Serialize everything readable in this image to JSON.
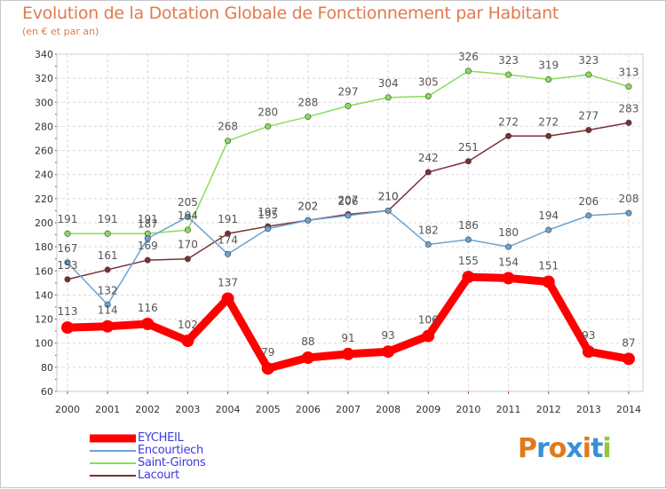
{
  "chart_data": {
    "type": "line",
    "title": "Evolution de la Dotation Globale de Fonctionnement par Habitant",
    "subtitle": "(en € et par an)",
    "xlabel": "",
    "ylabel": "",
    "categories": [
      "2000",
      "2001",
      "2002",
      "2003",
      "2004",
      "2005",
      "2006",
      "2007",
      "2008",
      "2009",
      "2010",
      "2011",
      "2012",
      "2013",
      "2014"
    ],
    "ylim": [
      60,
      340
    ],
    "yticks": [
      60,
      80,
      100,
      120,
      140,
      160,
      180,
      200,
      220,
      240,
      260,
      280,
      300,
      320,
      340
    ],
    "grid": true,
    "legend_position": "bottom-left",
    "series": [
      {
        "name": "EYCHEIL",
        "color": "#ff0000",
        "emphasis": true,
        "values": [
          113,
          114,
          116,
          102,
          137,
          79,
          88,
          91,
          93,
          106,
          155,
          154,
          151,
          93,
          87
        ]
      },
      {
        "name": "Encourtiech",
        "color": "#6aa3d0",
        "values": [
          167,
          132,
          187,
          205,
          174,
          195,
          202,
          206,
          210,
          182,
          186,
          180,
          194,
          206,
          208
        ]
      },
      {
        "name": "Saint-Girons",
        "color": "#88dd55",
        "values": [
          191,
          191,
          191,
          194,
          268,
          280,
          288,
          297,
          304,
          305,
          326,
          323,
          319,
          323,
          313
        ]
      },
      {
        "name": "Lacourt",
        "color": "#7a2f35",
        "values": [
          153,
          161,
          169,
          170,
          191,
          197,
          202,
          207,
          210,
          242,
          251,
          272,
          272,
          277,
          283
        ]
      }
    ],
    "data_labels": [
      [
        "113",
        "114",
        "116",
        "102",
        "137",
        "79",
        "88",
        "91",
        "93",
        "106",
        "155",
        "154",
        "151",
        "93",
        "87"
      ],
      [
        "167",
        "132",
        "187",
        "205",
        "174",
        "195",
        "202",
        "206",
        "210",
        "182",
        "186",
        "180",
        "194",
        "206",
        "208"
      ],
      [
        "191",
        "191",
        "191",
        "194",
        "268",
        "280",
        "288",
        "297",
        "304",
        "305",
        "326",
        "323",
        "319",
        "323",
        "313"
      ],
      [
        "153",
        "161",
        "169",
        "170",
        "191",
        "197",
        "202",
        "207",
        "210",
        "242",
        "251",
        "272",
        "272",
        "277",
        "283"
      ]
    ]
  },
  "logo": {
    "text": "Proxiti",
    "letters": [
      {
        "ch": "P",
        "color": "#e07a1a"
      },
      {
        "ch": "r",
        "color": "#3a8fd6"
      },
      {
        "ch": "o",
        "color": "#e07a1a"
      },
      {
        "ch": "x",
        "color": "#3a8fd6"
      },
      {
        "ch": "i",
        "color": "#e07a1a"
      },
      {
        "ch": "t",
        "color": "#3a8fd6"
      },
      {
        "ch": "i",
        "color": "#8fc63a"
      }
    ]
  }
}
